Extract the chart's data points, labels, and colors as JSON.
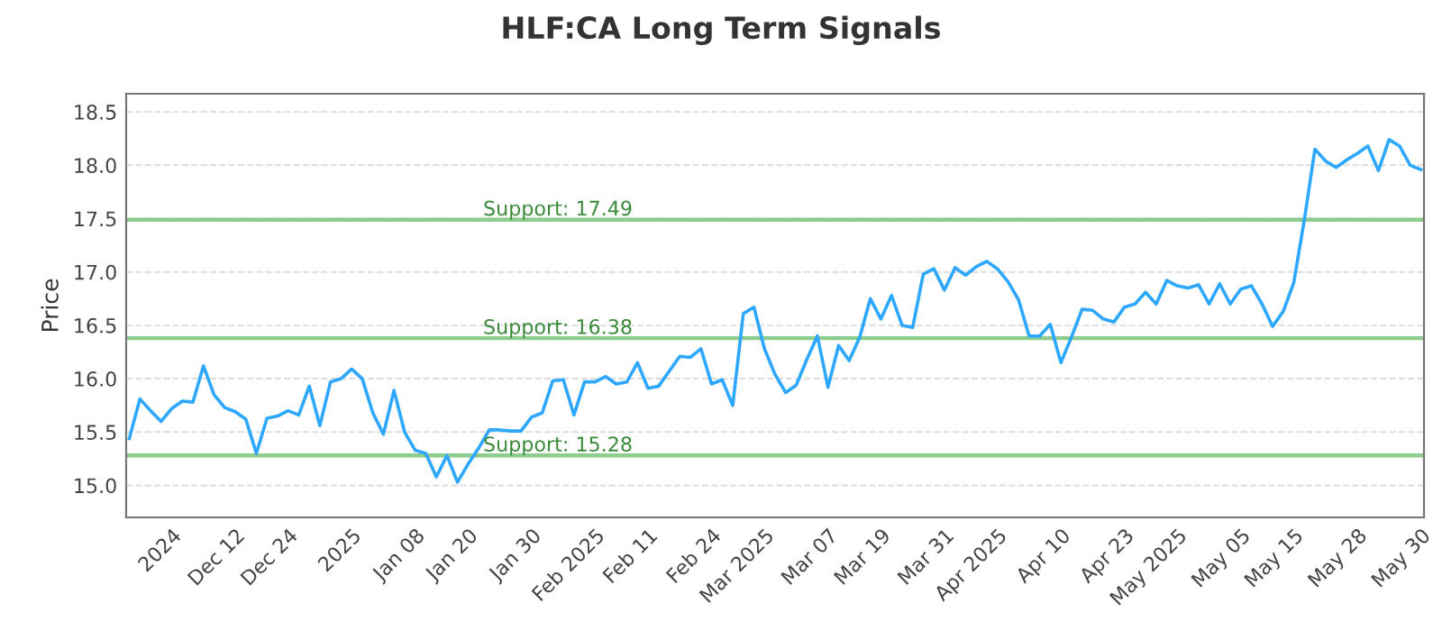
{
  "chart_data": {
    "type": "line",
    "title": "HLF:CA Long Term Signals",
    "ylabel": "Price",
    "categories": [
      null,
      null,
      null,
      null,
      "2024",
      null,
      null,
      null,
      null,
      null,
      "Dec 12",
      null,
      null,
      null,
      null,
      "Dec 24",
      null,
      null,
      null,
      null,
      null,
      "2025",
      null,
      null,
      null,
      null,
      null,
      "Jan 08",
      null,
      null,
      null,
      null,
      "Jan 20",
      null,
      null,
      null,
      null,
      null,
      "Jan 30",
      null,
      null,
      null,
      null,
      null,
      "Feb 2025",
      null,
      null,
      null,
      null,
      "Feb 11",
      null,
      null,
      null,
      null,
      null,
      "Feb 24",
      null,
      null,
      null,
      null,
      "Mar 2025",
      null,
      null,
      null,
      null,
      null,
      "Mar 07",
      null,
      null,
      null,
      null,
      "Mar 19",
      null,
      null,
      null,
      null,
      null,
      "Mar 31",
      null,
      null,
      null,
      null,
      "Apr 2025",
      null,
      null,
      null,
      null,
      null,
      "Apr 10",
      null,
      null,
      null,
      null,
      null,
      "Apr 23",
      null,
      null,
      null,
      null,
      "May 2025",
      null,
      null,
      null,
      null,
      null,
      "May 05",
      null,
      null,
      null,
      null,
      "May 15",
      null,
      null,
      null,
      null,
      null,
      "May 28",
      null,
      null,
      null,
      null,
      null,
      "May 30"
    ],
    "series": [
      {
        "color": "#2ea8ff",
        "values": [
          15.44,
          15.81,
          15.7,
          15.6,
          15.72,
          15.79,
          15.78,
          16.12,
          15.85,
          15.73,
          15.69,
          15.62,
          15.3,
          15.63,
          15.65,
          15.7,
          15.66,
          15.93,
          15.56,
          15.97,
          16.0,
          16.09,
          16.0,
          15.68,
          15.48,
          15.89,
          15.5,
          15.33,
          15.3,
          15.08,
          15.28,
          15.03,
          15.2,
          15.35,
          15.52,
          15.52,
          15.51,
          15.51,
          15.64,
          15.68,
          15.98,
          15.99,
          15.66,
          15.97,
          15.97,
          16.02,
          15.95,
          15.97,
          16.15,
          15.91,
          15.93,
          16.07,
          16.21,
          16.2,
          16.28,
          15.95,
          15.99,
          15.75,
          16.61,
          16.67,
          16.28,
          16.04,
          15.87,
          15.94,
          16.18,
          16.4,
          15.92,
          16.31,
          16.17,
          16.39,
          16.75,
          16.56,
          16.78,
          16.5,
          16.48,
          16.98,
          17.03,
          16.83,
          17.04,
          16.97,
          17.05,
          17.1,
          17.03,
          16.91,
          16.74,
          16.4,
          16.4,
          16.51,
          16.15,
          16.39,
          16.65,
          16.64,
          16.56,
          16.53,
          16.67,
          16.7,
          16.81,
          16.7,
          16.92,
          16.87,
          16.85,
          16.88,
          16.7,
          16.89,
          16.7,
          16.84,
          16.87,
          16.7,
          16.49,
          16.63,
          16.9,
          17.49,
          18.15,
          18.04,
          17.98,
          18.05,
          18.11,
          18.18,
          17.95,
          18.24,
          18.18,
          18.0,
          17.96
        ]
      }
    ],
    "ylim": [
      14.7,
      18.67
    ],
    "yticks": [
      {
        "value": 15,
        "label": "15.0"
      },
      {
        "value": 15.5,
        "label": "15.5"
      },
      {
        "value": 16,
        "label": "16.0"
      },
      {
        "value": 16.5,
        "label": "16.5"
      },
      {
        "value": 17,
        "label": "17.0"
      },
      {
        "value": 17.5,
        "label": "17.5"
      },
      {
        "value": 18,
        "label": "18.0"
      },
      {
        "value": 18.5,
        "label": "18.5"
      }
    ],
    "ref_lines": [
      {
        "axis": "y",
        "value": 17.49,
        "label": "Support: 17.49",
        "color": "#8ccc8c"
      },
      {
        "axis": "y",
        "value": 16.38,
        "label": "Support: 16.38",
        "color": "#8ccc8c"
      },
      {
        "axis": "y",
        "value": 15.28,
        "label": "Support: 15.28",
        "color": "#8ccc8c"
      }
    ],
    "grid": "y",
    "legend": false,
    "marker": "none",
    "line_style": "solid"
  }
}
